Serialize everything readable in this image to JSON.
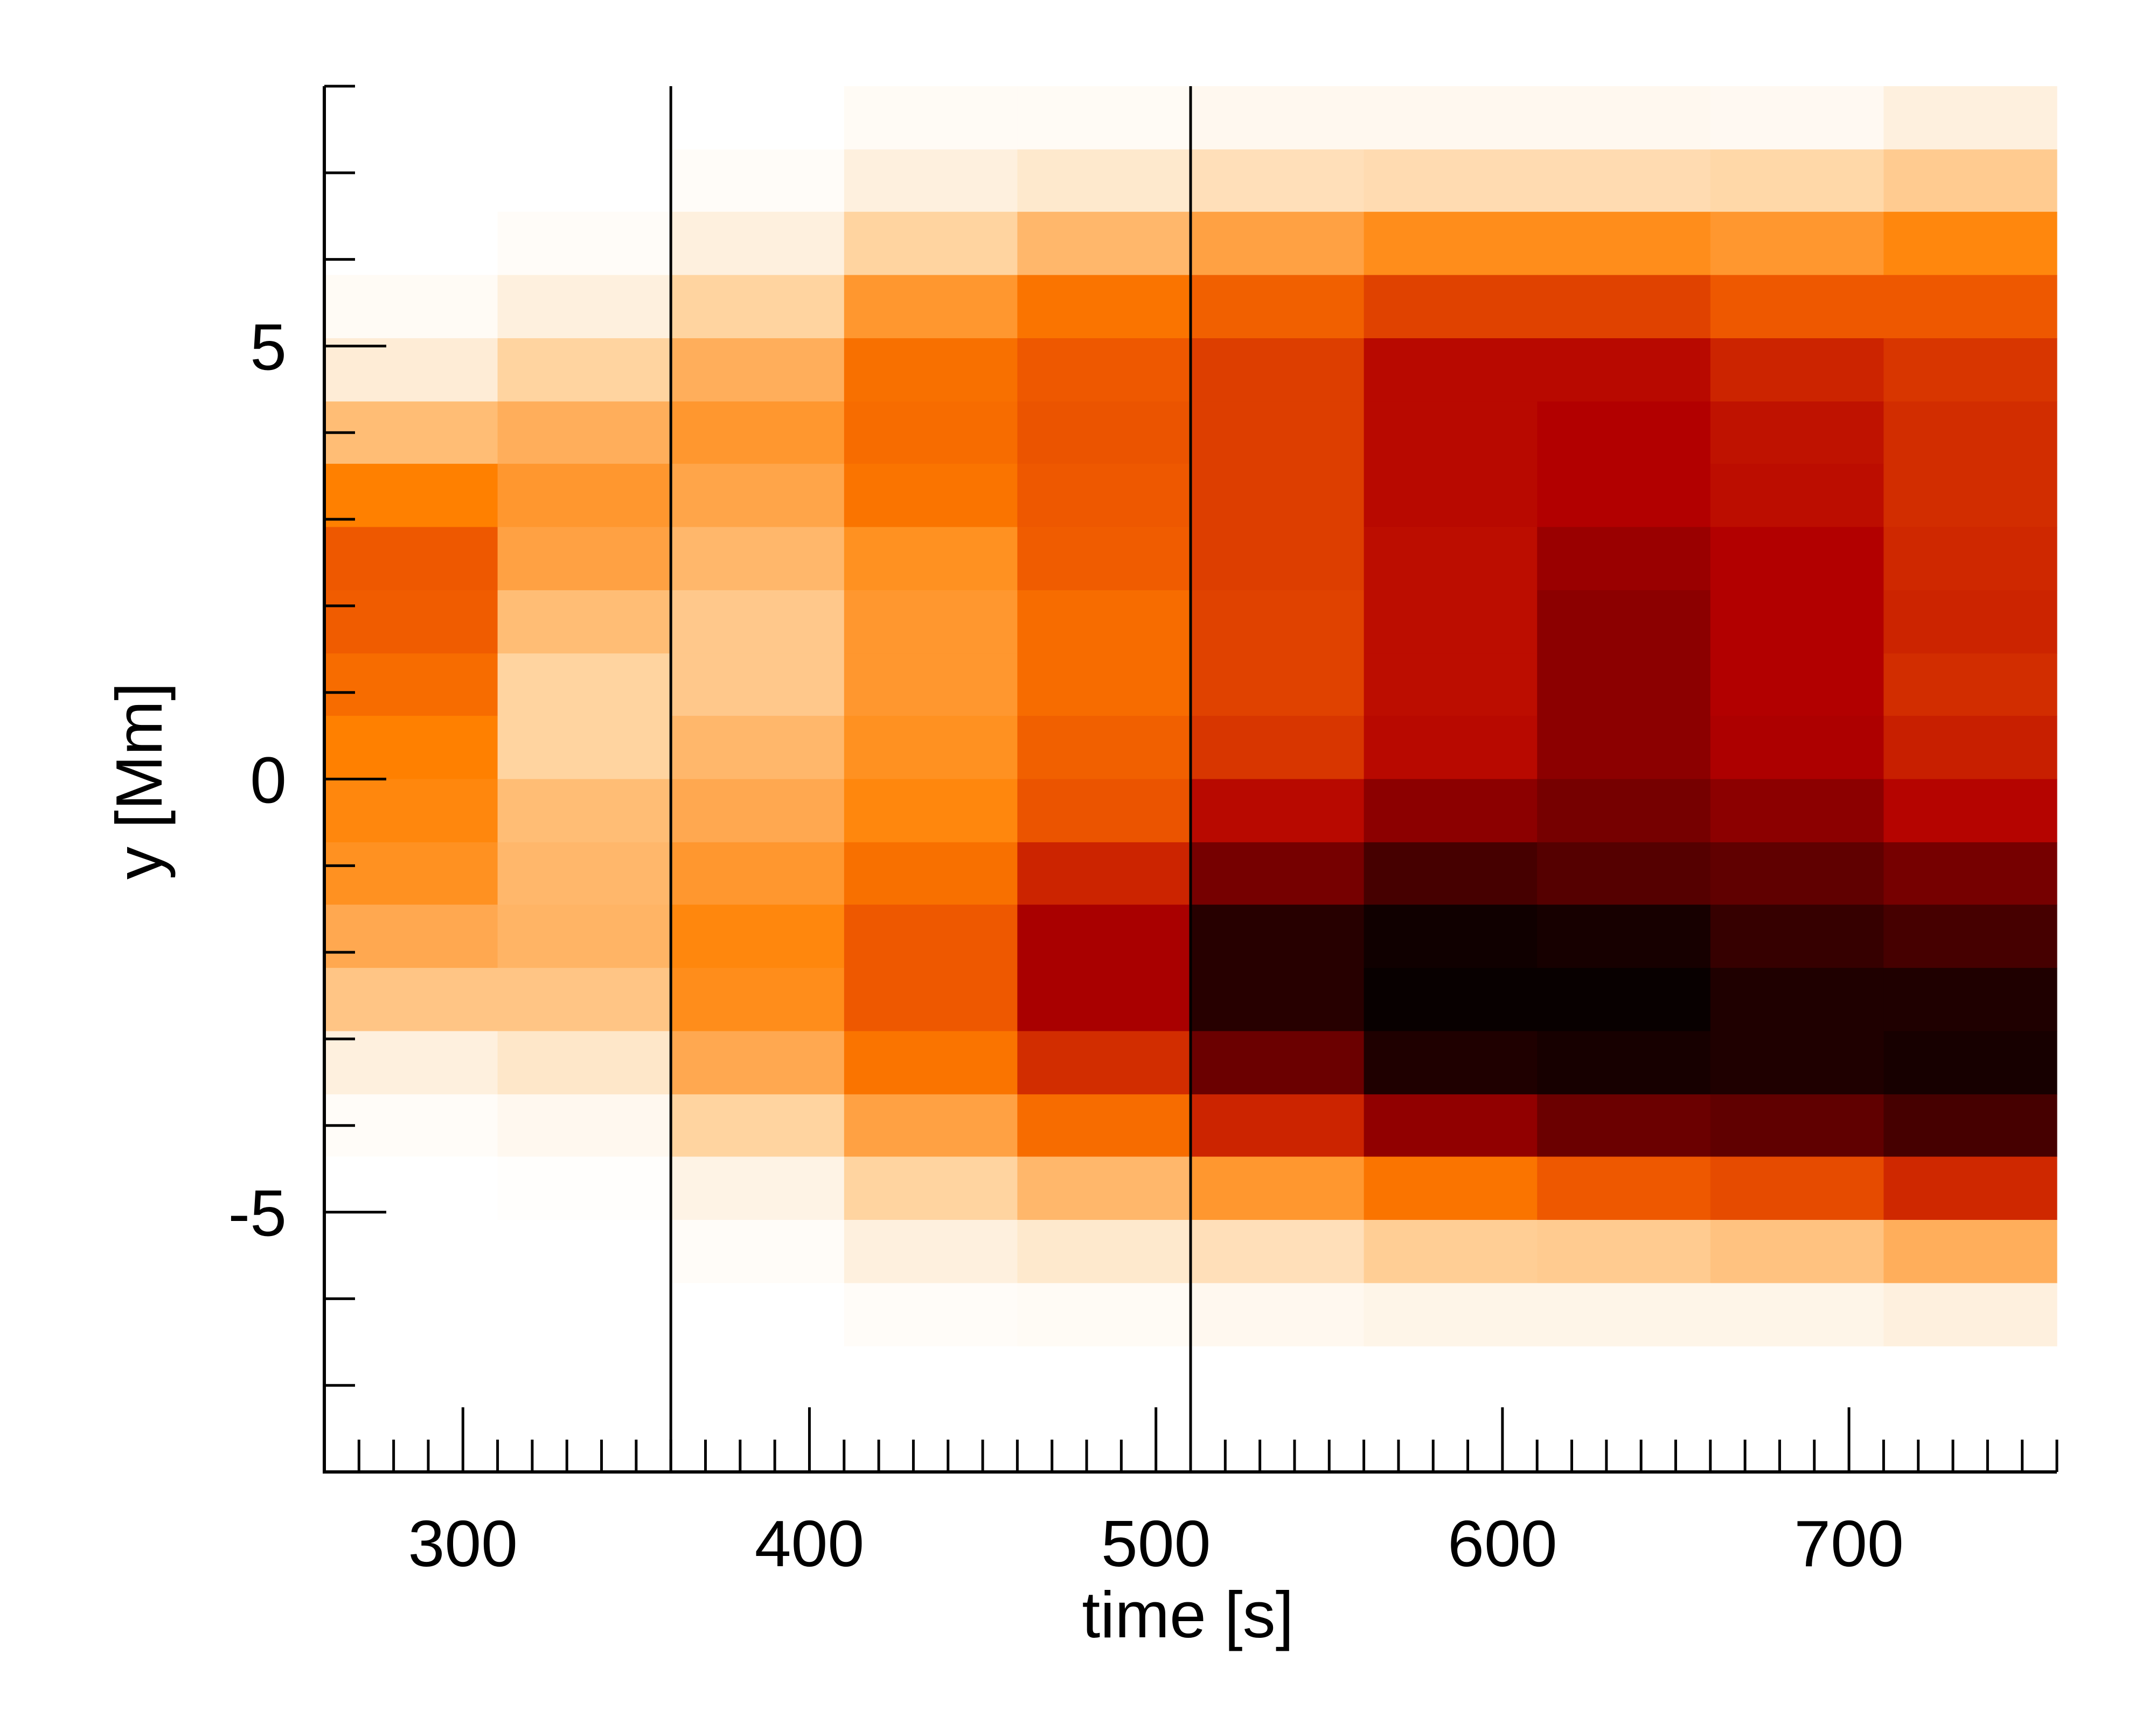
{
  "chart_data": {
    "type": "heatmap",
    "title": "",
    "xlabel": "time [s]",
    "ylabel": "y [Mm]",
    "xlim": [
      260,
      760
    ],
    "ylim": [
      -8,
      8
    ],
    "x_ticks": [
      300,
      400,
      500,
      600,
      700
    ],
    "y_ticks": [
      -5,
      0,
      5
    ],
    "x_minor_step": 10,
    "y_minor_step": 1,
    "grid": false,
    "legend": "none",
    "colormap": "gist_heat_r",
    "vertical_lines": [
      360,
      510
    ],
    "x_bin_edges": [
      260,
      310,
      360,
      410,
      460,
      510,
      560,
      610,
      660,
      710,
      760
    ],
    "y_bin_edges": [
      8,
      7.27,
      6.55,
      5.82,
      5.09,
      4.36,
      3.64,
      2.91,
      2.18,
      1.45,
      0.73,
      0,
      -0.73,
      -1.45,
      -2.18,
      -2.91,
      -3.64,
      -4.36,
      -5.09,
      -5.82,
      -6.55,
      -7.27,
      -8
    ],
    "values": [
      [
        0.0,
        0.0,
        0.0,
        0.03,
        0.03,
        0.05,
        0.05,
        0.05,
        0.04,
        0.1
      ],
      [
        0.0,
        0.0,
        0.02,
        0.1,
        0.14,
        0.19,
        0.21,
        0.21,
        0.23,
        0.28
      ],
      [
        0.0,
        0.02,
        0.1,
        0.25,
        0.35,
        0.42,
        0.48,
        0.48,
        0.45,
        0.5
      ],
      [
        0.03,
        0.1,
        0.25,
        0.45,
        0.55,
        0.6,
        0.67,
        0.67,
        0.62,
        0.62
      ],
      [
        0.12,
        0.25,
        0.38,
        0.56,
        0.62,
        0.68,
        0.8,
        0.8,
        0.74,
        0.7
      ],
      [
        0.33,
        0.38,
        0.45,
        0.57,
        0.63,
        0.68,
        0.8,
        0.82,
        0.78,
        0.72
      ],
      [
        0.52,
        0.45,
        0.41,
        0.55,
        0.62,
        0.68,
        0.8,
        0.82,
        0.79,
        0.72
      ],
      [
        0.62,
        0.42,
        0.35,
        0.47,
        0.61,
        0.68,
        0.79,
        0.87,
        0.82,
        0.73
      ],
      [
        0.61,
        0.33,
        0.29,
        0.45,
        0.57,
        0.67,
        0.79,
        0.9,
        0.82,
        0.74
      ],
      [
        0.57,
        0.25,
        0.29,
        0.45,
        0.57,
        0.67,
        0.79,
        0.9,
        0.82,
        0.72
      ],
      [
        0.52,
        0.25,
        0.35,
        0.47,
        0.6,
        0.7,
        0.8,
        0.9,
        0.83,
        0.75
      ],
      [
        0.5,
        0.33,
        0.4,
        0.5,
        0.63,
        0.8,
        0.9,
        0.92,
        0.9,
        0.81
      ],
      [
        0.47,
        0.35,
        0.45,
        0.56,
        0.74,
        0.92,
        0.96,
        0.95,
        0.94,
        0.92
      ],
      [
        0.4,
        0.36,
        0.5,
        0.62,
        0.84,
        0.98,
        0.995,
        0.99,
        0.97,
        0.96
      ],
      [
        0.3,
        0.3,
        0.48,
        0.62,
        0.84,
        0.98,
        1.0,
        1.0,
        0.985,
        0.985
      ],
      [
        0.1,
        0.15,
        0.4,
        0.55,
        0.72,
        0.93,
        0.985,
        0.99,
        0.985,
        0.99
      ],
      [
        0.02,
        0.05,
        0.25,
        0.42,
        0.57,
        0.74,
        0.89,
        0.93,
        0.94,
        0.96
      ],
      [
        0.0,
        0.01,
        0.08,
        0.25,
        0.35,
        0.45,
        0.55,
        0.62,
        0.65,
        0.73
      ],
      [
        0.0,
        0.0,
        0.02,
        0.1,
        0.14,
        0.19,
        0.27,
        0.28,
        0.31,
        0.38
      ],
      [
        0.0,
        0.0,
        0.0,
        0.02,
        0.03,
        0.05,
        0.07,
        0.07,
        0.07,
        0.1
      ],
      [
        0.0,
        0.0,
        0.0,
        0.0,
        0.0,
        0.0,
        0.0,
        0.0,
        0.0,
        0.0
      ],
      [
        0.0,
        0.0,
        0.0,
        0.0,
        0.0,
        0.0,
        0.0,
        0.0,
        0.0,
        0.0
      ]
    ]
  }
}
